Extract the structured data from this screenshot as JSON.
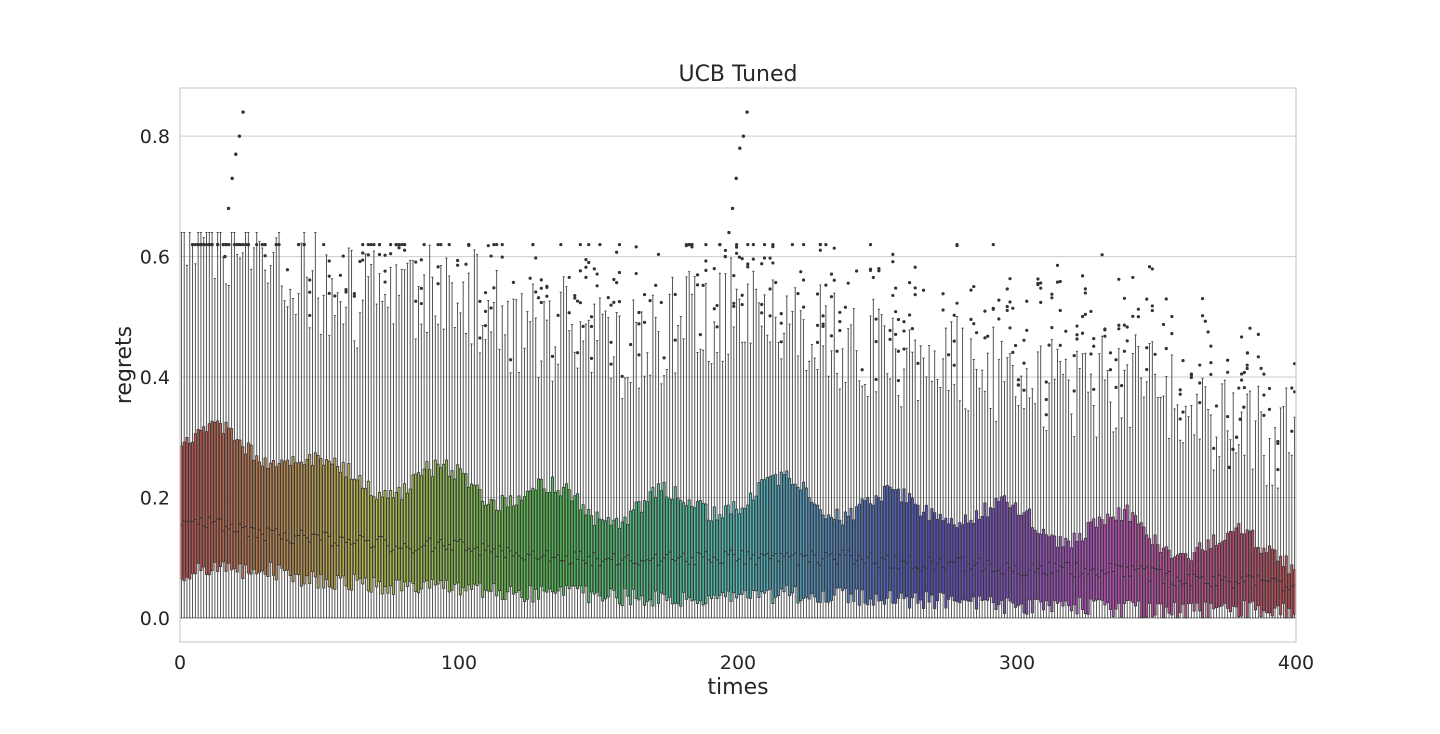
{
  "chart_data": {
    "type": "box",
    "title": "UCB Tuned",
    "xlabel": "times",
    "ylabel": "regrets",
    "xlim": [
      0,
      400
    ],
    "ylim": [
      -0.04,
      0.88
    ],
    "x_ticks": [
      0,
      100,
      200,
      300,
      400
    ],
    "x_tick_labels": [
      "0",
      "100",
      "200",
      "300",
      "400"
    ],
    "y_ticks": [
      0.0,
      0.2,
      0.4,
      0.6,
      0.8
    ],
    "y_tick_labels": [
      "0.0",
      "0.2",
      "0.4",
      "0.6",
      "0.8"
    ],
    "grid": "horizontal",
    "n_boxes": 400,
    "palette": "husl",
    "trend": {
      "x": [
        0,
        10,
        20,
        30,
        50,
        60,
        80,
        100,
        120,
        140,
        160,
        180,
        200,
        220,
        240,
        260,
        280,
        300,
        320,
        340,
        360,
        380,
        400
      ],
      "q1": [
        0.07,
        0.08,
        0.08,
        0.08,
        0.06,
        0.06,
        0.05,
        0.05,
        0.04,
        0.04,
        0.035,
        0.03,
        0.035,
        0.04,
        0.035,
        0.03,
        0.03,
        0.02,
        0.02,
        0.015,
        0.01,
        0.015,
        0.01
      ],
      "median": [
        0.15,
        0.16,
        0.15,
        0.14,
        0.13,
        0.13,
        0.12,
        0.12,
        0.11,
        0.1,
        0.095,
        0.1,
        0.1,
        0.1,
        0.1,
        0.09,
        0.09,
        0.08,
        0.08,
        0.08,
        0.06,
        0.06,
        0.055
      ],
      "q3": [
        0.28,
        0.3,
        0.3,
        0.28,
        0.24,
        0.24,
        0.22,
        0.23,
        0.21,
        0.19,
        0.18,
        0.19,
        0.2,
        0.21,
        0.19,
        0.18,
        0.18,
        0.16,
        0.15,
        0.15,
        0.12,
        0.12,
        0.11
      ],
      "whisker_high": [
        0.6,
        0.62,
        0.6,
        0.56,
        0.52,
        0.5,
        0.48,
        0.52,
        0.45,
        0.44,
        0.4,
        0.46,
        0.48,
        0.46,
        0.42,
        0.4,
        0.4,
        0.36,
        0.34,
        0.36,
        0.3,
        0.28,
        0.26
      ]
    },
    "outlier_clusters": [
      {
        "x": 20,
        "y": [
          0.6,
          0.68,
          0.73,
          0.77,
          0.8,
          0.84
        ]
      },
      {
        "x": 200,
        "y": [
          0.6,
          0.64,
          0.68,
          0.73,
          0.78,
          0.8,
          0.84
        ]
      },
      {
        "x": 380,
        "y": [
          0.25,
          0.28,
          0.3,
          0.33,
          0.35,
          0.44
        ]
      }
    ]
  }
}
